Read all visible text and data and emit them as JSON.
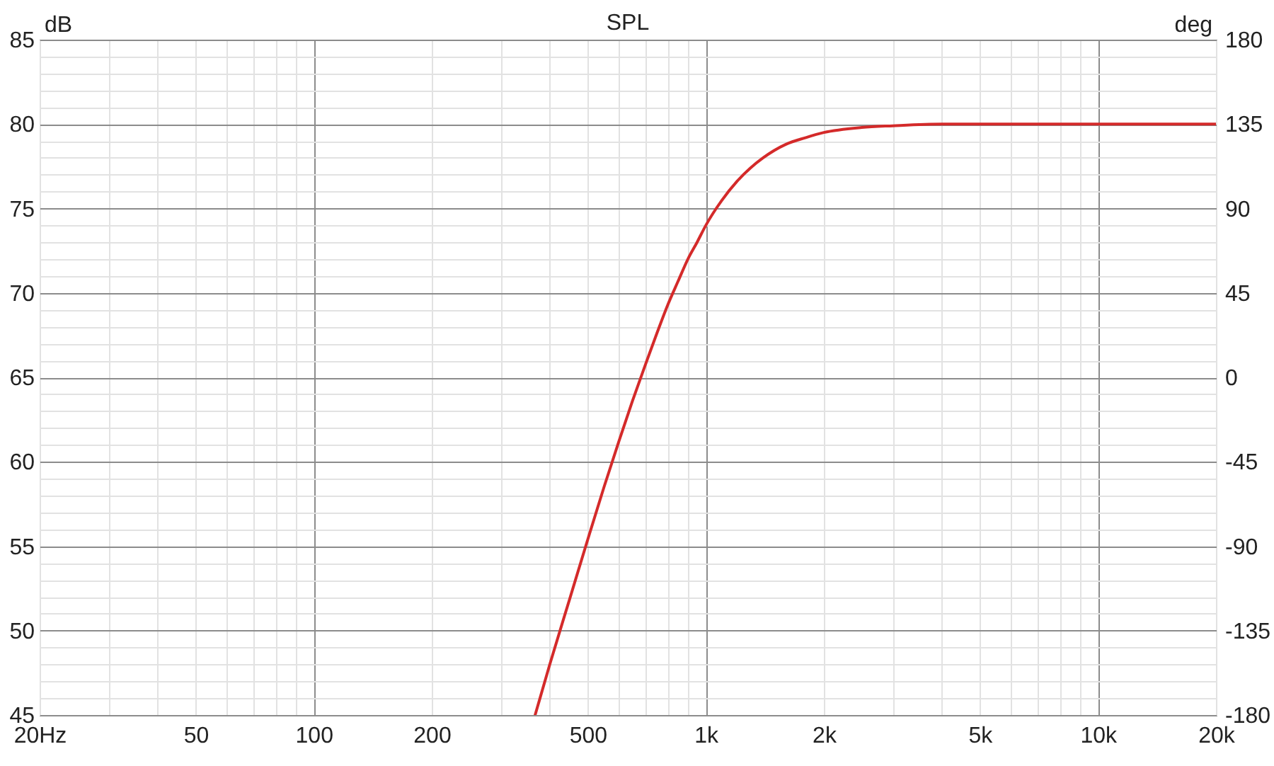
{
  "chart_data": {
    "type": "line",
    "title": "SPL",
    "ylabel": "dB",
    "y2label": "deg",
    "log": "x",
    "grid": true,
    "xlim": [
      20,
      20000
    ],
    "xticks": [
      {
        "value": 20,
        "label": "20Hz"
      },
      {
        "value": 30,
        "label": null
      },
      {
        "value": 40,
        "label": null
      },
      50,
      {
        "value": 60,
        "label": null
      },
      {
        "value": 70,
        "label": null
      },
      {
        "value": 80,
        "label": null
      },
      {
        "value": 90,
        "label": null
      },
      100,
      200,
      {
        "value": 300,
        "label": null
      },
      {
        "value": 400,
        "label": null
      },
      500,
      {
        "value": 600,
        "label": null
      },
      {
        "value": 700,
        "label": null
      },
      {
        "value": 800,
        "label": null
      },
      {
        "value": 900,
        "label": null
      },
      {
        "value": 1000,
        "label": "1k"
      },
      {
        "value": 2000,
        "label": "2k"
      },
      {
        "value": 3000,
        "label": null
      },
      {
        "value": 4000,
        "label": null
      },
      {
        "value": 5000,
        "label": "5k"
      },
      {
        "value": 6000,
        "label": null
      },
      {
        "value": 7000,
        "label": null
      },
      {
        "value": 8000,
        "label": null
      },
      {
        "value": 9000,
        "label": null
      },
      {
        "value": 10000,
        "label": "10k"
      },
      {
        "value": 20000,
        "label": "20k"
      }
    ],
    "ylim": [
      45,
      85
    ],
    "yticks": [
      45,
      {
        "value": 46,
        "label": null
      },
      {
        "value": 47,
        "label": null
      },
      {
        "value": 48,
        "label": null
      },
      {
        "value": 49,
        "label": null
      },
      50,
      {
        "value": 51,
        "label": null
      },
      {
        "value": 52,
        "label": null
      },
      {
        "value": 53,
        "label": null
      },
      {
        "value": 54,
        "label": null
      },
      55,
      {
        "value": 56,
        "label": null
      },
      {
        "value": 57,
        "label": null
      },
      {
        "value": 58,
        "label": null
      },
      {
        "value": 59,
        "label": null
      },
      60,
      {
        "value": 61,
        "label": null
      },
      {
        "value": 62,
        "label": null
      },
      {
        "value": 63,
        "label": null
      },
      {
        "value": 64,
        "label": null
      },
      65,
      {
        "value": 66,
        "label": null
      },
      {
        "value": 67,
        "label": null
      },
      {
        "value": 68,
        "label": null
      },
      {
        "value": 69,
        "label": null
      },
      70,
      {
        "value": 71,
        "label": null
      },
      {
        "value": 72,
        "label": null
      },
      {
        "value": 73,
        "label": null
      },
      {
        "value": 74,
        "label": null
      },
      75,
      {
        "value": 76,
        "label": null
      },
      {
        "value": 77,
        "label": null
      },
      {
        "value": 78,
        "label": null
      },
      {
        "value": 79,
        "label": null
      },
      80,
      {
        "value": 81,
        "label": null
      },
      {
        "value": 82,
        "label": null
      },
      {
        "value": 83,
        "label": null
      },
      {
        "value": 84,
        "label": null
      },
      85
    ],
    "y2lim": [
      -180,
      180
    ],
    "y2ticks": [
      -180,
      -135,
      -90,
      -45,
      0,
      45,
      90,
      135,
      180
    ],
    "series": [
      {
        "color": "#d42a2a",
        "x": [
          367,
          400,
          450,
          500,
          550,
          600,
          650,
          700,
          750,
          800,
          850,
          900,
          950,
          1000,
          1100,
          1200,
          1300,
          1400,
          1600,
          1800,
          2000,
          2500,
          3000,
          4000,
          8000,
          20000
        ],
        "values": [
          45,
          48,
          51.9,
          55.4,
          58.5,
          61.2,
          63.6,
          65.7,
          67.6,
          69.3,
          70.7,
          72,
          73,
          74,
          75.5,
          76.6,
          77.4,
          78,
          78.8,
          79.2,
          79.5,
          79.8,
          79.9,
          80,
          80,
          80
        ]
      }
    ]
  }
}
